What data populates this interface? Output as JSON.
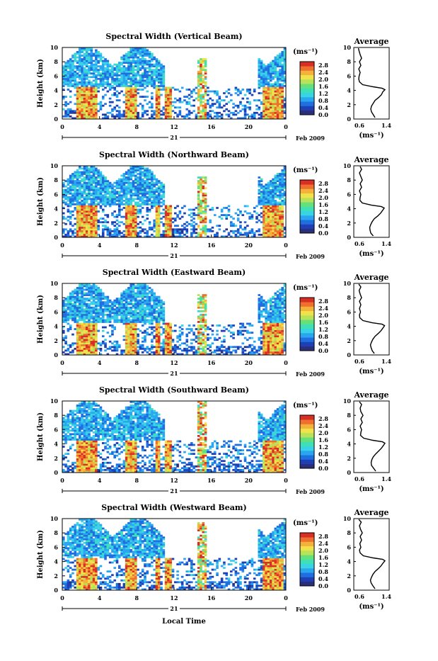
{
  "colors": {
    "scale": [
      "#2b2f7a",
      "#1f3fb5",
      "#1f6fe0",
      "#2aa6f0",
      "#39d3e6",
      "#3fe0b5",
      "#66e07a",
      "#b6e35a",
      "#f0e24a",
      "#f5b23a",
      "#ef6f2e",
      "#d92e24"
    ]
  },
  "figure": {
    "xlabel": "Local Time",
    "month_label": "Feb 2009",
    "units_label": "(ms⁻¹)",
    "average_title": "Average",
    "ylabel": "Height (km)",
    "day_label": "21"
  },
  "chart_data": [
    {
      "type": "heatmap",
      "title": "Spectral Width (Vertical Beam)",
      "x_ticks": [
        "0",
        "4",
        "8",
        "12",
        "16",
        "20",
        "0"
      ],
      "y_ticks": [
        "0",
        "2",
        "4",
        "6",
        "8",
        "10"
      ],
      "xlim": [
        0,
        24
      ],
      "ylim": [
        0,
        10
      ],
      "colorbar_ticks": [
        "0.0",
        "0.4",
        "0.8",
        "1.2",
        "1.6",
        "2.0",
        "2.4",
        "2.8"
      ],
      "colorbar_range": [
        0,
        3.0
      ],
      "features": {
        "convective_cells_hours": [
          [
            1.4,
            3.8
          ],
          [
            6.7,
            7.9
          ],
          [
            9.9,
            10.6
          ],
          [
            11.1,
            11.7
          ],
          [
            21.5,
            23.8
          ]
        ],
        "convective_top_km": 4.5,
        "spike_hours": [
          14.4,
          15.4
        ],
        "spike_top_km": 8.5
      },
      "average_profile": {
        "xlim": [
          0.6,
          1.4
        ],
        "x_ticks": [
          "0.6",
          "1.4"
        ],
        "y_ticks": [
          "0",
          "2",
          "4",
          "6",
          "8",
          "10"
        ],
        "xlabel": "(ms⁻¹)",
        "height_km": [
          0.2,
          0.6,
          1.0,
          1.4,
          1.8,
          2.2,
          2.6,
          3.0,
          3.4,
          3.8,
          4.1,
          4.3,
          4.5,
          4.8,
          5.2,
          5.6,
          6.0,
          6.5,
          7.0,
          7.5,
          8.0,
          8.5,
          9.0,
          9.5,
          9.9
        ],
        "width": [
          1.1,
          1.05,
          1.0,
          0.98,
          1.0,
          1.05,
          1.1,
          1.2,
          1.28,
          1.32,
          1.38,
          1.3,
          1.05,
          0.75,
          0.66,
          0.64,
          0.65,
          0.68,
          0.64,
          0.7,
          0.66,
          0.72,
          0.68,
          0.65,
          0.63
        ]
      }
    },
    {
      "type": "heatmap",
      "title": "Spectral Width (Northward Beam)",
      "x_ticks": [
        "0",
        "4",
        "8",
        "12",
        "16",
        "20",
        "0"
      ],
      "y_ticks": [
        "0",
        "2",
        "4",
        "6",
        "8",
        "10"
      ],
      "xlim": [
        0,
        24
      ],
      "ylim": [
        0,
        10
      ],
      "colorbar_ticks": [
        "0.0",
        "0.4",
        "0.8",
        "1.2",
        "1.6",
        "2.0",
        "2.4",
        "2.8"
      ],
      "colorbar_range": [
        0,
        3.0
      ],
      "features": {
        "convective_cells_hours": [
          [
            1.4,
            3.8
          ],
          [
            6.7,
            7.9
          ],
          [
            9.9,
            10.6
          ],
          [
            11.1,
            11.7
          ],
          [
            21.5,
            23.8
          ]
        ],
        "convective_top_km": 4.5,
        "spike_hours": [
          14.4,
          15.4
        ],
        "spike_top_km": 8.5
      },
      "average_profile": {
        "xlim": [
          0.6,
          1.4
        ],
        "x_ticks": [
          "0.6",
          "1.4"
        ],
        "y_ticks": [
          "0",
          "2",
          "4",
          "6",
          "8",
          "10"
        ],
        "xlabel": "(ms⁻¹)",
        "height_km": [
          0.2,
          0.6,
          1.0,
          1.4,
          1.8,
          2.2,
          2.6,
          3.0,
          3.4,
          3.8,
          4.1,
          4.3,
          4.5,
          4.8,
          5.2,
          5.6,
          6.0,
          6.5,
          7.0,
          7.5,
          8.0,
          8.5,
          9.0,
          9.5,
          9.9
        ],
        "width": [
          1.05,
          0.98,
          0.96,
          0.95,
          0.98,
          1.02,
          1.08,
          1.18,
          1.26,
          1.32,
          1.36,
          1.28,
          1.0,
          0.74,
          0.67,
          0.68,
          0.7,
          0.66,
          0.72,
          0.68,
          0.74,
          0.7,
          0.66,
          0.72,
          0.68
        ]
      }
    },
    {
      "type": "heatmap",
      "title": "Spectral Width (Eastward Beam)",
      "x_ticks": [
        "0",
        "4",
        "8",
        "12",
        "16",
        "20",
        "0"
      ],
      "y_ticks": [
        "0",
        "2",
        "4",
        "6",
        "8",
        "10"
      ],
      "xlim": [
        0,
        24
      ],
      "ylim": [
        0,
        10
      ],
      "colorbar_ticks": [
        "0.0",
        "0.4",
        "0.8",
        "1.2",
        "1.6",
        "2.0",
        "2.4",
        "2.8"
      ],
      "colorbar_range": [
        0,
        3.0
      ],
      "features": {
        "convective_cells_hours": [
          [
            1.4,
            3.8
          ],
          [
            6.7,
            7.9
          ],
          [
            9.9,
            10.6
          ],
          [
            11.1,
            11.7
          ],
          [
            21.5,
            23.8
          ]
        ],
        "convective_top_km": 4.5,
        "spike_hours": [
          14.4,
          15.4
        ],
        "spike_top_km": 8.5
      },
      "average_profile": {
        "xlim": [
          0.6,
          1.4
        ],
        "x_ticks": [
          "0.6",
          "1.4"
        ],
        "y_ticks": [
          "0",
          "2",
          "4",
          "6",
          "8",
          "10"
        ],
        "xlabel": "(ms⁻¹)",
        "height_km": [
          0.2,
          0.6,
          1.0,
          1.4,
          1.8,
          2.2,
          2.6,
          3.0,
          3.4,
          3.8,
          4.1,
          4.3,
          4.5,
          4.8,
          5.2,
          5.6,
          6.0,
          6.5,
          7.0,
          7.5,
          8.0,
          8.5,
          9.0,
          9.5,
          9.9
        ],
        "width": [
          1.08,
          1.02,
          0.99,
          0.97,
          1.0,
          1.04,
          1.1,
          1.19,
          1.27,
          1.33,
          1.37,
          1.3,
          1.02,
          0.76,
          0.67,
          0.66,
          0.69,
          0.66,
          0.7,
          0.66,
          0.72,
          0.68,
          0.65,
          0.7,
          0.64
        ]
      }
    },
    {
      "type": "heatmap",
      "title": "Spectral Width (Southward Beam)",
      "x_ticks": [
        "0",
        "4",
        "8",
        "12",
        "16",
        "20",
        "0"
      ],
      "y_ticks": [
        "0",
        "2",
        "4",
        "6",
        "8",
        "10"
      ],
      "xlim": [
        0,
        24
      ],
      "ylim": [
        0,
        10
      ],
      "colorbar_ticks": [
        "0.0",
        "0.4",
        "0.8",
        "1.2",
        "1.6",
        "2.0",
        "2.4",
        "2.8"
      ],
      "colorbar_range": [
        0,
        3.0
      ],
      "features": {
        "convective_cells_hours": [
          [
            1.4,
            3.8
          ],
          [
            6.7,
            7.9
          ],
          [
            9.9,
            10.6
          ],
          [
            11.1,
            11.7
          ],
          [
            21.5,
            23.8
          ]
        ],
        "convective_top_km": 4.5,
        "spike_hours": [
          14.4,
          15.4
        ],
        "spike_top_km": 10.0
      },
      "average_profile": {
        "xlim": [
          0.6,
          1.4
        ],
        "x_ticks": [
          "0.6",
          "1.4"
        ],
        "y_ticks": [
          "0",
          "2",
          "4",
          "6",
          "8",
          "10"
        ],
        "xlabel": "(ms⁻¹)",
        "height_km": [
          0.2,
          0.6,
          1.0,
          1.4,
          1.8,
          2.2,
          2.6,
          3.0,
          3.4,
          3.8,
          4.1,
          4.3,
          4.5,
          4.8,
          5.2,
          5.6,
          6.0,
          6.5,
          7.0,
          7.5,
          8.0,
          8.5,
          9.0,
          9.5,
          9.9
        ],
        "width": [
          1.12,
          1.06,
          1.0,
          0.99,
          1.01,
          1.05,
          1.12,
          1.2,
          1.28,
          1.34,
          1.38,
          1.31,
          1.04,
          0.78,
          0.69,
          0.7,
          0.72,
          0.68,
          0.74,
          0.7,
          0.76,
          0.7,
          0.68,
          0.72,
          0.66
        ]
      }
    },
    {
      "type": "heatmap",
      "title": "Spectral Width (Westward Beam)",
      "x_ticks": [
        "0",
        "4",
        "8",
        "12",
        "16",
        "20",
        "0"
      ],
      "y_ticks": [
        "0",
        "2",
        "4",
        "6",
        "8",
        "10"
      ],
      "xlim": [
        0,
        24
      ],
      "ylim": [
        0,
        10
      ],
      "colorbar_ticks": [
        "0.0",
        "0.4",
        "0.8",
        "1.2",
        "1.6",
        "2.0",
        "2.4",
        "2.8"
      ],
      "colorbar_range": [
        0,
        3.0
      ],
      "features": {
        "convective_cells_hours": [
          [
            1.4,
            3.8
          ],
          [
            6.7,
            7.9
          ],
          [
            9.9,
            10.6
          ],
          [
            11.1,
            11.7
          ],
          [
            21.5,
            23.8
          ]
        ],
        "convective_top_km": 4.5,
        "spike_hours": [
          14.4,
          15.4
        ],
        "spike_top_km": 9.5
      },
      "average_profile": {
        "xlim": [
          0.6,
          1.4
        ],
        "x_ticks": [
          "0.6",
          "1.4"
        ],
        "y_ticks": [
          "0",
          "2",
          "4",
          "6",
          "8",
          "10"
        ],
        "xlabel": "(ms⁻¹)",
        "height_km": [
          0.2,
          0.6,
          1.0,
          1.4,
          1.8,
          2.2,
          2.6,
          3.0,
          3.4,
          3.8,
          4.1,
          4.3,
          4.5,
          4.8,
          5.2,
          5.6,
          6.0,
          6.5,
          7.0,
          7.5,
          8.0,
          8.5,
          9.0,
          9.5,
          9.9
        ],
        "width": [
          1.1,
          1.04,
          0.99,
          0.97,
          1.0,
          1.04,
          1.1,
          1.19,
          1.27,
          1.33,
          1.38,
          1.32,
          1.05,
          0.77,
          0.68,
          0.66,
          0.7,
          0.67,
          0.72,
          0.68,
          0.74,
          0.69,
          0.66,
          0.71,
          0.64
        ]
      }
    }
  ]
}
